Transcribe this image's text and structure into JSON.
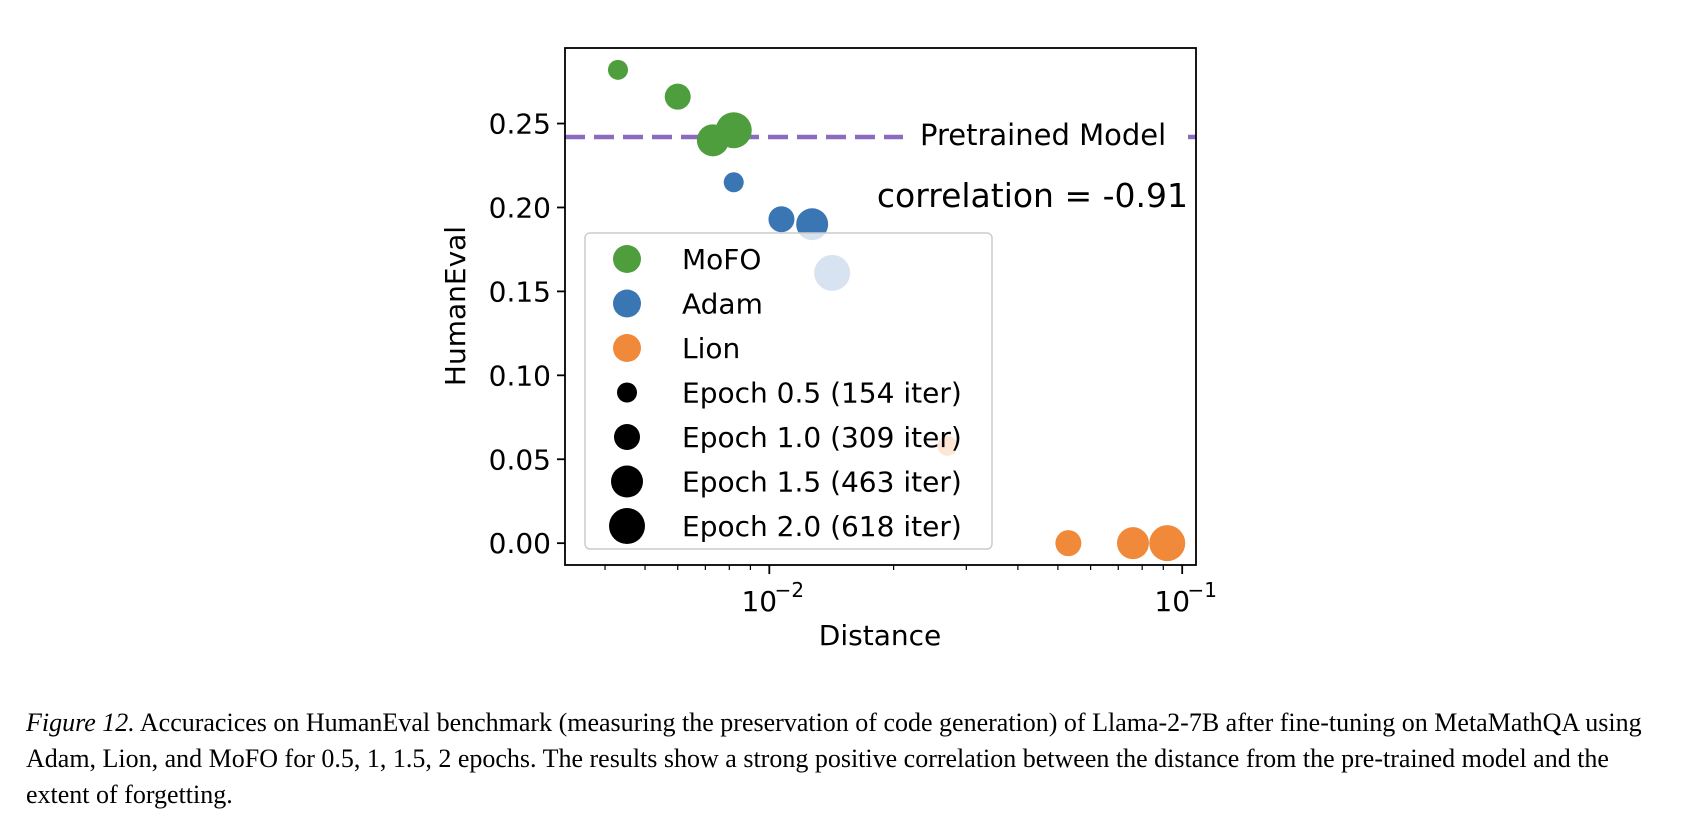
{
  "chart_data": {
    "type": "scatter",
    "xlabel": "Distance",
    "ylabel": "HumanEval",
    "xscale": "log",
    "xlim": [
      0.0032,
      0.108
    ],
    "ylim": [
      -0.013,
      0.295
    ],
    "x_ticks": [
      {
        "value": 0.01,
        "base": "10",
        "exp": "−2"
      },
      {
        "value": 0.1,
        "base": "10",
        "exp": "−1"
      }
    ],
    "y_ticks": [
      {
        "value": 0.0,
        "label": "0.00"
      },
      {
        "value": 0.05,
        "label": "0.05"
      },
      {
        "value": 0.1,
        "label": "0.10"
      },
      {
        "value": 0.15,
        "label": "0.15"
      },
      {
        "value": 0.2,
        "label": "0.20"
      },
      {
        "value": 0.25,
        "label": "0.25"
      }
    ],
    "reference_line": {
      "label": "Pretrained Model",
      "y": 0.242,
      "color": "#8c6bbf"
    },
    "annotation": {
      "text": "correlation = -0.91",
      "color": "#e8322a"
    },
    "series": [
      {
        "name": "MoFO",
        "color": "#4e9e3d",
        "points": [
          {
            "x": 0.0043,
            "y": 0.282,
            "epoch": 0.5
          },
          {
            "x": 0.006,
            "y": 0.266,
            "epoch": 1.0
          },
          {
            "x": 0.0073,
            "y": 0.24,
            "epoch": 1.5
          },
          {
            "x": 0.0082,
            "y": 0.246,
            "epoch": 2.0
          }
        ]
      },
      {
        "name": "Adam",
        "color": "#3a76b4",
        "points": [
          {
            "x": 0.0082,
            "y": 0.215,
            "epoch": 0.5
          },
          {
            "x": 0.0107,
            "y": 0.193,
            "epoch": 1.0
          },
          {
            "x": 0.0127,
            "y": 0.19,
            "epoch": 1.5
          },
          {
            "x": 0.0142,
            "y": 0.161,
            "epoch": 2.0
          }
        ]
      },
      {
        "name": "Lion",
        "color": "#f0893a",
        "points": [
          {
            "x": 0.027,
            "y": 0.058,
            "epoch": 0.5
          },
          {
            "x": 0.053,
            "y": 0.0,
            "epoch": 1.0
          },
          {
            "x": 0.076,
            "y": 0.0,
            "epoch": 1.5
          },
          {
            "x": 0.092,
            "y": 0.0,
            "epoch": 2.0
          }
        ]
      }
    ],
    "legend": {
      "placement": "center-left",
      "series_entries": [
        "MoFO",
        "Adam",
        "Lion"
      ],
      "size_entries": [
        {
          "epoch": 0.5,
          "label": "Epoch 0.5 (154 iter)"
        },
        {
          "epoch": 1.0,
          "label": "Epoch 1.0 (309 iter)"
        },
        {
          "epoch": 1.5,
          "label": "Epoch 1.5 (463 iter)"
        },
        {
          "epoch": 2.0,
          "label": "Epoch 2.0 (618 iter)"
        }
      ]
    }
  },
  "caption": {
    "figure_label": "Figure 12.",
    "text": " Accuracices on HumanEval benchmark (measuring the preservation of code generation) of Llama-2-7B after fine-tuning on MetaMathQA using Adam, Lion, and MoFO for 0.5, 1, 1.5, 2 epochs. The results show a strong positive correlation between the distance from the pre-trained model and the extent of forgetting."
  }
}
